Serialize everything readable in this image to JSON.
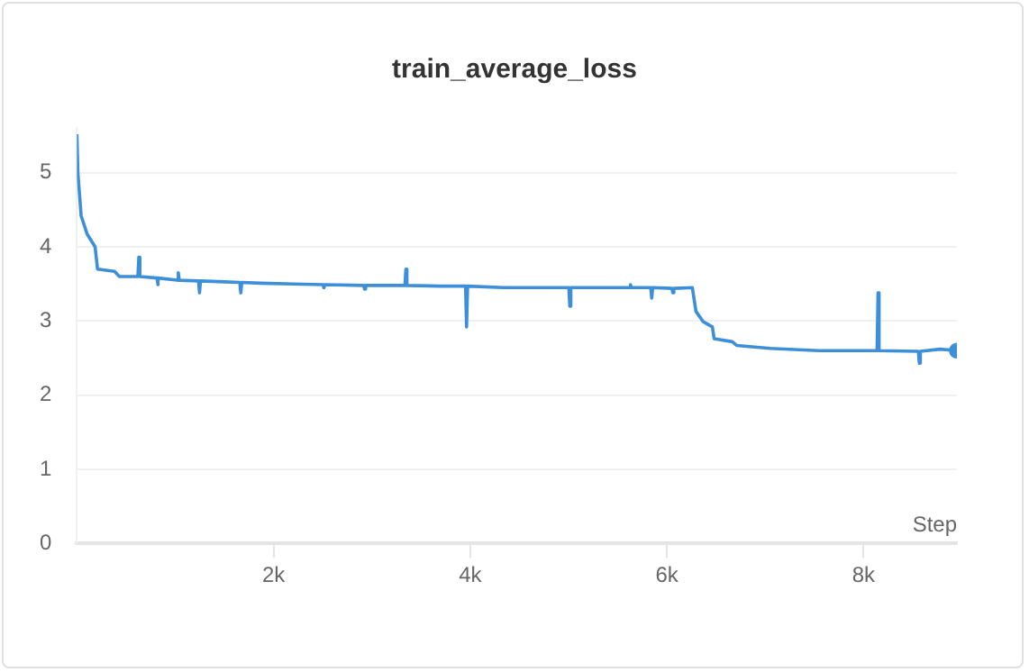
{
  "chart_data": {
    "type": "line",
    "title": "train_average_loss",
    "xlabel": "Step",
    "x": [
      0,
      10,
      43,
      105,
      185,
      210,
      383,
      432,
      620,
      630,
      640,
      815,
      820,
      830,
      1021,
      1031,
      1041,
      1237,
      1247,
      1257,
      1657,
      1667,
      1677,
      1864,
      2200,
      2502,
      2512,
      2522,
      2916,
      2926,
      2936,
      3336,
      3346,
      3356,
      3700,
      3953,
      3963,
      3973,
      4333,
      5003,
      5013,
      5023,
      5620,
      5630,
      5640,
      5836,
      5846,
      5856,
      6051,
      6061,
      6071,
      6259,
      6296,
      6370,
      6463,
      6481,
      6667,
      6710,
      7050,
      7543,
      8138,
      8148,
      8158,
      8558,
      8568,
      8578,
      8778,
      8950
    ],
    "series": [
      {
        "color": "#3d8fd9",
        "values": [
          5.52,
          5.0,
          4.42,
          4.17,
          4.0,
          3.7,
          3.67,
          3.6,
          3.6,
          3.86,
          3.6,
          3.58,
          3.49,
          3.58,
          3.55,
          3.65,
          3.55,
          3.54,
          3.38,
          3.54,
          3.52,
          3.38,
          3.52,
          3.51,
          3.5,
          3.49,
          3.45,
          3.49,
          3.48,
          3.43,
          3.48,
          3.48,
          3.7,
          3.48,
          3.47,
          3.47,
          2.92,
          3.47,
          3.45,
          3.45,
          3.2,
          3.45,
          3.45,
          3.49,
          3.45,
          3.45,
          3.31,
          3.45,
          3.44,
          3.38,
          3.44,
          3.45,
          3.13,
          2.99,
          2.92,
          2.76,
          2.72,
          2.67,
          2.63,
          2.6,
          2.6,
          3.38,
          2.6,
          2.59,
          2.43,
          2.59,
          2.62,
          2.6
        ]
      }
    ],
    "xlim": [
      0,
      8950
    ],
    "xticks": [
      {
        "value": 2000,
        "label": "2k"
      },
      {
        "value": 4000,
        "label": "4k"
      },
      {
        "value": 6000,
        "label": "6k"
      },
      {
        "value": 8000,
        "label": "8k"
      }
    ],
    "ylim": [
      0,
      5.6
    ],
    "yticks": [
      0,
      1,
      2,
      3,
      4,
      5
    ],
    "grid": "y",
    "legend": false,
    "marker": "none",
    "line_style": "solid"
  }
}
